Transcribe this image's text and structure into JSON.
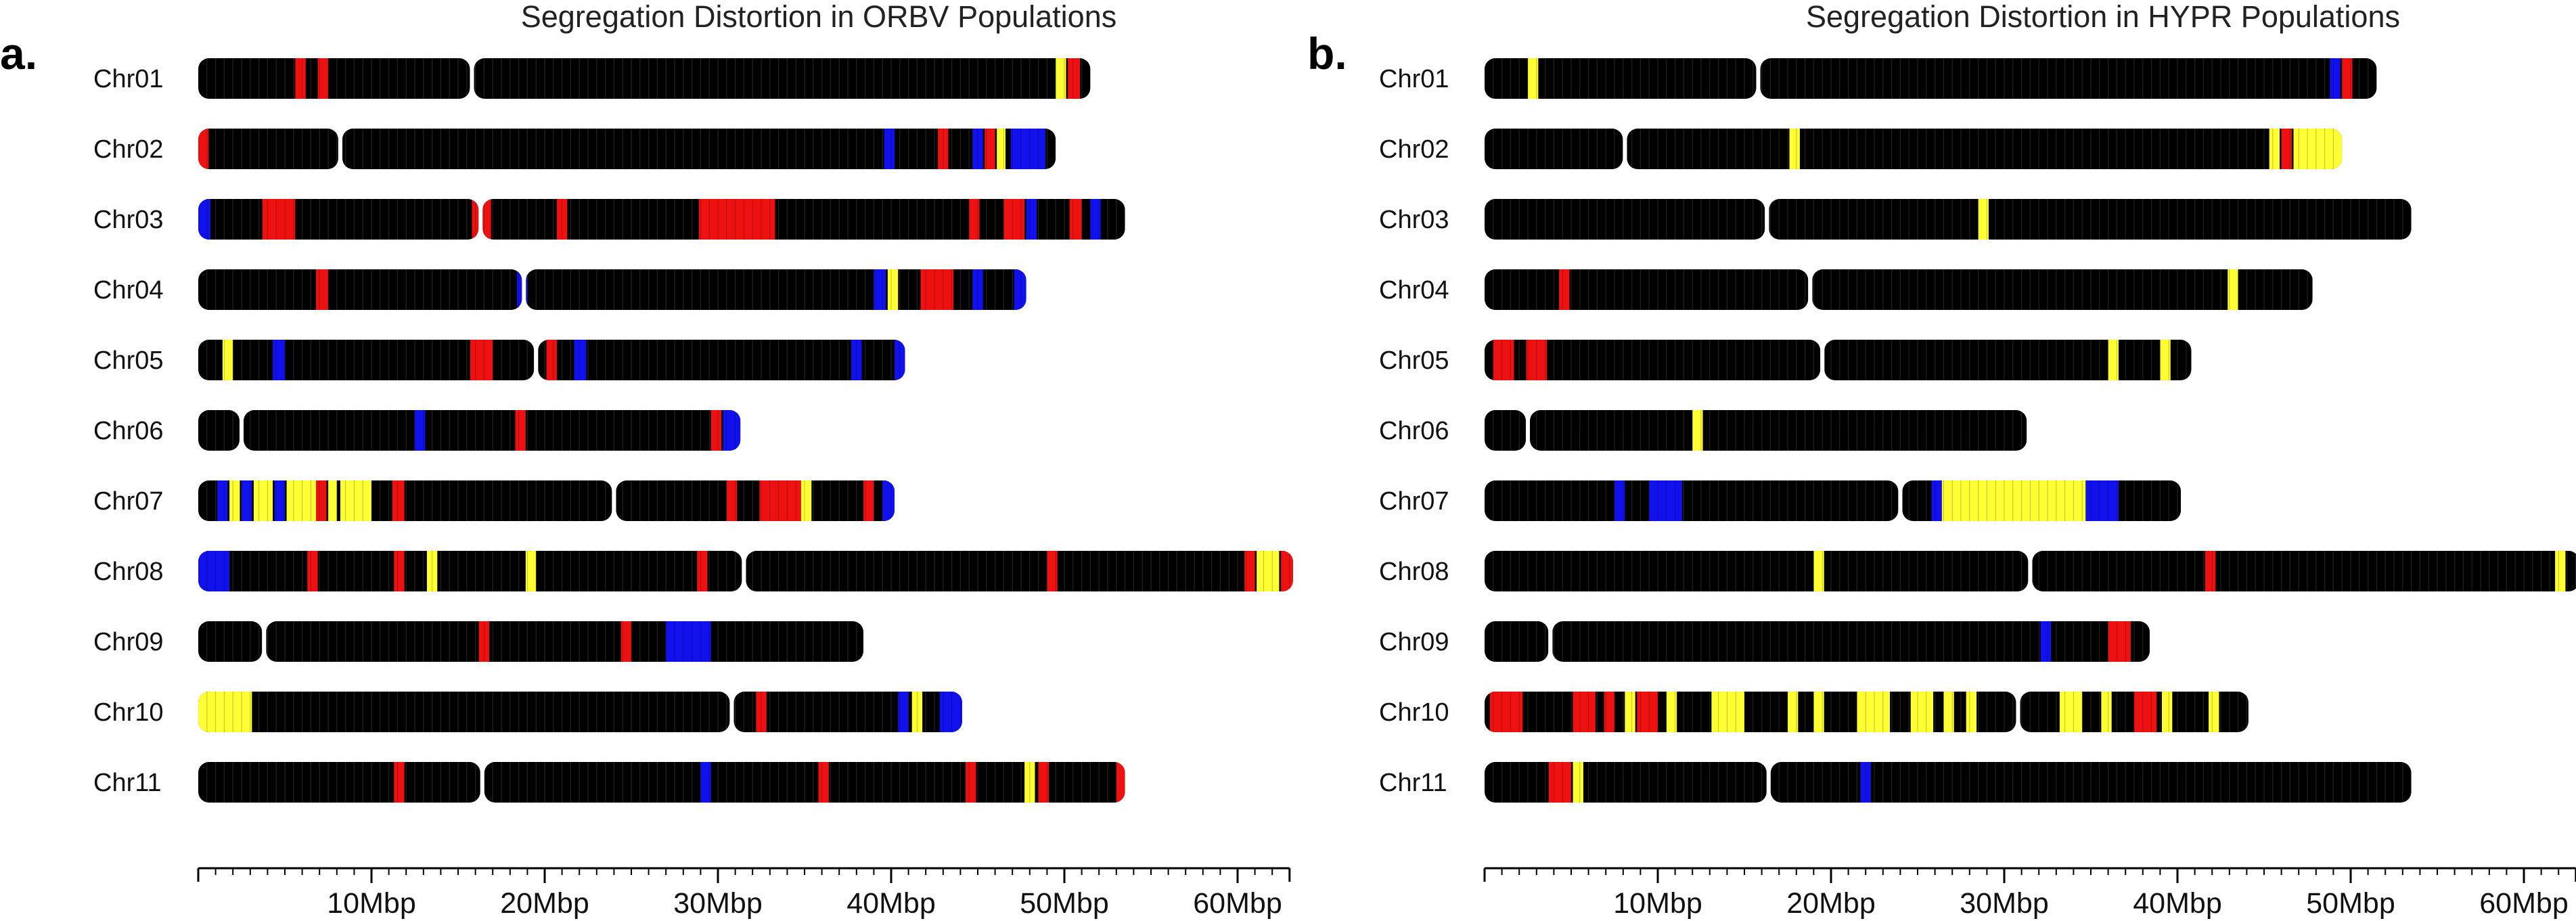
{
  "colors": {
    "background_chromosome": "#000000",
    "stripe": "#2b2b2b",
    "red": "#ee1111",
    "yellow": "#ffff33",
    "blue": "#1111ee"
  },
  "chart_data": [
    {
      "type": "chromosome_ideogram",
      "panel_letter": "a.",
      "title": "Segregation Distortion in ORBV Populations",
      "xlabel": "",
      "ylabel": "",
      "xlim": [
        0,
        63
      ],
      "x_ticks": [
        10,
        20,
        30,
        40,
        50,
        60
      ],
      "x_tick_labels": [
        "10Mbp",
        "20Mbp",
        "30Mbp",
        "40Mbp",
        "50Mbp",
        "60Mbp"
      ],
      "chromosomes": [
        {
          "name": "Chr01",
          "length": 51.5,
          "centromere": 15.8,
          "marks": [
            {
              "s": 5.6,
              "e": 6.2,
              "c": "red"
            },
            {
              "s": 6.9,
              "e": 7.5,
              "c": "red"
            },
            {
              "s": 49.5,
              "e": 50.1,
              "c": "yellow"
            },
            {
              "s": 50.2,
              "e": 50.9,
              "c": "red"
            }
          ]
        },
        {
          "name": "Chr02",
          "length": 49.5,
          "centromere": 8.2,
          "marks": [
            {
              "s": 0.0,
              "e": 0.6,
              "c": "red"
            },
            {
              "s": 39.6,
              "e": 40.2,
              "c": "blue"
            },
            {
              "s": 42.7,
              "e": 43.3,
              "c": "red"
            },
            {
              "s": 44.7,
              "e": 45.3,
              "c": "blue"
            },
            {
              "s": 45.4,
              "e": 46.0,
              "c": "red"
            },
            {
              "s": 46.1,
              "e": 46.6,
              "c": "yellow"
            },
            {
              "s": 46.9,
              "e": 48.9,
              "c": "blue"
            }
          ]
        },
        {
          "name": "Chr03",
          "length": 53.5,
          "centromere": 16.3,
          "marks": [
            {
              "s": 0.0,
              "e": 0.7,
              "c": "blue"
            },
            {
              "s": 3.7,
              "e": 5.6,
              "c": "red"
            },
            {
              "s": 15.8,
              "e": 16.9,
              "c": "red"
            },
            {
              "s": 20.7,
              "e": 21.3,
              "c": "red"
            },
            {
              "s": 28.9,
              "e": 33.3,
              "c": "red"
            },
            {
              "s": 44.5,
              "e": 45.1,
              "c": "red"
            },
            {
              "s": 46.5,
              "e": 47.7,
              "c": "red"
            },
            {
              "s": 47.8,
              "e": 48.4,
              "c": "blue"
            },
            {
              "s": 50.3,
              "e": 51.0,
              "c": "red"
            },
            {
              "s": 51.5,
              "e": 52.1,
              "c": "blue"
            }
          ]
        },
        {
          "name": "Chr04",
          "length": 47.8,
          "centromere": 18.8,
          "marks": [
            {
              "s": 6.8,
              "e": 7.5,
              "c": "red"
            },
            {
              "s": 18.4,
              "e": 19.0,
              "c": "blue"
            },
            {
              "s": 39.0,
              "e": 39.7,
              "c": "blue"
            },
            {
              "s": 39.8,
              "e": 40.4,
              "c": "yellow"
            },
            {
              "s": 41.7,
              "e": 43.6,
              "c": "red"
            },
            {
              "s": 44.7,
              "e": 45.3,
              "c": "blue"
            },
            {
              "s": 47.1,
              "e": 47.8,
              "c": "blue"
            }
          ]
        },
        {
          "name": "Chr05",
          "length": 40.8,
          "centromere": 19.5,
          "marks": [
            {
              "s": 1.4,
              "e": 2.0,
              "c": "yellow"
            },
            {
              "s": 4.3,
              "e": 5.0,
              "c": "blue"
            },
            {
              "s": 15.7,
              "e": 17.0,
              "c": "red"
            },
            {
              "s": 20.1,
              "e": 20.7,
              "c": "red"
            },
            {
              "s": 21.7,
              "e": 22.4,
              "c": "blue"
            },
            {
              "s": 37.7,
              "e": 38.3,
              "c": "blue"
            },
            {
              "s": 40.2,
              "e": 40.8,
              "c": "blue"
            }
          ]
        },
        {
          "name": "Chr06",
          "length": 31.3,
          "centromere": 2.5,
          "marks": [
            {
              "s": 12.5,
              "e": 13.1,
              "c": "blue"
            },
            {
              "s": 18.3,
              "e": 18.9,
              "c": "red"
            },
            {
              "s": 29.6,
              "e": 30.2,
              "c": "red"
            },
            {
              "s": 30.3,
              "e": 31.3,
              "c": "blue"
            }
          ]
        },
        {
          "name": "Chr07",
          "length": 40.2,
          "centromere": 24.0,
          "marks": [
            {
              "s": 1.1,
              "e": 1.7,
              "c": "blue"
            },
            {
              "s": 1.8,
              "e": 2.4,
              "c": "yellow"
            },
            {
              "s": 2.5,
              "e": 3.1,
              "c": "blue"
            },
            {
              "s": 3.2,
              "e": 4.3,
              "c": "yellow"
            },
            {
              "s": 4.4,
              "e": 5.0,
              "c": "blue"
            },
            {
              "s": 5.1,
              "e": 6.8,
              "c": "yellow"
            },
            {
              "s": 6.8,
              "e": 7.4,
              "c": "red"
            },
            {
              "s": 7.5,
              "e": 8.0,
              "c": "yellow"
            },
            {
              "s": 8.2,
              "e": 10.0,
              "c": "yellow"
            },
            {
              "s": 11.2,
              "e": 11.9,
              "c": "red"
            },
            {
              "s": 30.5,
              "e": 31.1,
              "c": "red"
            },
            {
              "s": 32.4,
              "e": 34.8,
              "c": "red"
            },
            {
              "s": 34.8,
              "e": 35.4,
              "c": "yellow"
            },
            {
              "s": 38.4,
              "e": 39.0,
              "c": "red"
            },
            {
              "s": 39.5,
              "e": 40.2,
              "c": "blue"
            }
          ]
        },
        {
          "name": "Chr08",
          "length": 63.2,
          "centromere": 31.5,
          "marks": [
            {
              "s": 0.0,
              "e": 1.8,
              "c": "blue"
            },
            {
              "s": 6.3,
              "e": 6.9,
              "c": "red"
            },
            {
              "s": 11.3,
              "e": 11.9,
              "c": "red"
            },
            {
              "s": 13.2,
              "e": 13.8,
              "c": "yellow"
            },
            {
              "s": 18.9,
              "e": 19.5,
              "c": "yellow"
            },
            {
              "s": 28.8,
              "e": 29.4,
              "c": "red"
            },
            {
              "s": 49.0,
              "e": 49.6,
              "c": "red"
            },
            {
              "s": 60.4,
              "e": 61.0,
              "c": "red"
            },
            {
              "s": 61.1,
              "e": 62.4,
              "c": "yellow"
            },
            {
              "s": 62.5,
              "e": 63.2,
              "c": "red"
            }
          ]
        },
        {
          "name": "Chr09",
          "length": 38.4,
          "centromere": 3.8,
          "marks": [
            {
              "s": 16.2,
              "e": 16.8,
              "c": "red"
            },
            {
              "s": 24.4,
              "e": 25.0,
              "c": "red"
            },
            {
              "s": 27.0,
              "e": 29.6,
              "c": "blue"
            }
          ]
        },
        {
          "name": "Chr10",
          "length": 44.1,
          "centromere": 30.8,
          "marks": [
            {
              "s": 0.0,
              "e": 3.1,
              "c": "yellow"
            },
            {
              "s": 32.2,
              "e": 32.8,
              "c": "red"
            },
            {
              "s": 40.4,
              "e": 41.0,
              "c": "blue"
            },
            {
              "s": 41.2,
              "e": 41.8,
              "c": "yellow"
            },
            {
              "s": 42.8,
              "e": 44.1,
              "c": "blue"
            }
          ]
        },
        {
          "name": "Chr11",
          "length": 53.5,
          "centromere": 16.4,
          "marks": [
            {
              "s": 11.3,
              "e": 11.9,
              "c": "red"
            },
            {
              "s": 29.0,
              "e": 29.6,
              "c": "blue"
            },
            {
              "s": 35.8,
              "e": 36.4,
              "c": "red"
            },
            {
              "s": 44.3,
              "e": 44.9,
              "c": "red"
            },
            {
              "s": 47.7,
              "e": 48.3,
              "c": "yellow"
            },
            {
              "s": 48.5,
              "e": 49.1,
              "c": "red"
            },
            {
              "s": 53.0,
              "e": 53.5,
              "c": "red"
            }
          ]
        }
      ]
    },
    {
      "type": "chromosome_ideogram",
      "panel_letter": "b.",
      "title": "Segregation Distortion in HYPR Populations",
      "xlabel": "",
      "ylabel": "",
      "xlim": [
        0,
        63
      ],
      "x_ticks": [
        10,
        20,
        30,
        40,
        50,
        60
      ],
      "x_tick_labels": [
        "10Mbp",
        "20Mbp",
        "30Mbp",
        "40Mbp",
        "50Mbp",
        "60Mbp"
      ],
      "chromosomes": [
        {
          "name": "Chr01",
          "length": 51.5,
          "centromere": 15.8,
          "marks": [
            {
              "s": 2.5,
              "e": 3.1,
              "c": "yellow"
            },
            {
              "s": 48.8,
              "e": 49.4,
              "c": "blue"
            },
            {
              "s": 49.5,
              "e": 50.1,
              "c": "red"
            }
          ]
        },
        {
          "name": "Chr02",
          "length": 49.5,
          "centromere": 8.1,
          "marks": [
            {
              "s": 17.6,
              "e": 18.2,
              "c": "yellow"
            },
            {
              "s": 45.3,
              "e": 45.9,
              "c": "yellow"
            },
            {
              "s": 46.0,
              "e": 46.6,
              "c": "red"
            },
            {
              "s": 46.7,
              "e": 49.5,
              "c": "yellow"
            }
          ]
        },
        {
          "name": "Chr03",
          "length": 53.5,
          "centromere": 16.3,
          "marks": [
            {
              "s": 28.5,
              "e": 29.1,
              "c": "yellow"
            }
          ]
        },
        {
          "name": "Chr04",
          "length": 47.8,
          "centromere": 18.8,
          "marks": [
            {
              "s": 4.3,
              "e": 4.9,
              "c": "red"
            },
            {
              "s": 42.9,
              "e": 43.5,
              "c": "yellow"
            }
          ]
        },
        {
          "name": "Chr05",
          "length": 40.8,
          "centromere": 19.5,
          "marks": [
            {
              "s": 0.5,
              "e": 1.7,
              "c": "red"
            },
            {
              "s": 2.4,
              "e": 3.6,
              "c": "red"
            },
            {
              "s": 36.0,
              "e": 36.6,
              "c": "yellow"
            },
            {
              "s": 39.0,
              "e": 39.6,
              "c": "yellow"
            }
          ]
        },
        {
          "name": "Chr06",
          "length": 31.3,
          "centromere": 2.5,
          "marks": [
            {
              "s": 12.0,
              "e": 12.6,
              "c": "yellow"
            }
          ]
        },
        {
          "name": "Chr07",
          "length": 40.2,
          "centromere": 24.0,
          "marks": [
            {
              "s": 7.5,
              "e": 8.1,
              "c": "blue"
            },
            {
              "s": 9.5,
              "e": 11.4,
              "c": "blue"
            },
            {
              "s": 25.8,
              "e": 26.4,
              "c": "blue"
            },
            {
              "s": 26.4,
              "e": 34.7,
              "c": "yellow"
            },
            {
              "s": 34.7,
              "e": 36.6,
              "c": "blue"
            }
          ]
        },
        {
          "name": "Chr08",
          "length": 63.2,
          "centromere": 31.5,
          "marks": [
            {
              "s": 19.0,
              "e": 19.6,
              "c": "yellow"
            },
            {
              "s": 41.6,
              "e": 42.2,
              "c": "red"
            },
            {
              "s": 61.8,
              "e": 62.4,
              "c": "yellow"
            }
          ]
        },
        {
          "name": "Chr09",
          "length": 38.4,
          "centromere": 3.8,
          "marks": [
            {
              "s": 32.1,
              "e": 32.7,
              "c": "blue"
            },
            {
              "s": 36.0,
              "e": 37.3,
              "c": "red"
            }
          ]
        },
        {
          "name": "Chr10",
          "length": 44.1,
          "centromere": 30.8,
          "marks": [
            {
              "s": 0.3,
              "e": 2.2,
              "c": "red"
            },
            {
              "s": 5.1,
              "e": 6.4,
              "c": "red"
            },
            {
              "s": 6.9,
              "e": 7.5,
              "c": "red"
            },
            {
              "s": 8.1,
              "e": 8.7,
              "c": "yellow"
            },
            {
              "s": 8.8,
              "e": 10.0,
              "c": "red"
            },
            {
              "s": 10.5,
              "e": 11.1,
              "c": "yellow"
            },
            {
              "s": 13.1,
              "e": 15.0,
              "c": "yellow"
            },
            {
              "s": 17.5,
              "e": 18.1,
              "c": "yellow"
            },
            {
              "s": 19.0,
              "e": 19.6,
              "c": "yellow"
            },
            {
              "s": 21.5,
              "e": 23.4,
              "c": "yellow"
            },
            {
              "s": 24.6,
              "e": 25.9,
              "c": "yellow"
            },
            {
              "s": 26.5,
              "e": 27.1,
              "c": "yellow"
            },
            {
              "s": 27.8,
              "e": 28.4,
              "c": "yellow"
            },
            {
              "s": 33.2,
              "e": 34.5,
              "c": "yellow"
            },
            {
              "s": 35.6,
              "e": 36.2,
              "c": "yellow"
            },
            {
              "s": 37.5,
              "e": 38.8,
              "c": "red"
            },
            {
              "s": 39.1,
              "e": 39.7,
              "c": "yellow"
            },
            {
              "s": 41.8,
              "e": 42.4,
              "c": "yellow"
            }
          ]
        },
        {
          "name": "Chr11",
          "length": 53.5,
          "centromere": 16.4,
          "marks": [
            {
              "s": 3.7,
              "e": 5.0,
              "c": "red"
            },
            {
              "s": 5.1,
              "e": 5.7,
              "c": "yellow"
            },
            {
              "s": 21.7,
              "e": 22.3,
              "c": "blue"
            }
          ]
        }
      ]
    }
  ]
}
